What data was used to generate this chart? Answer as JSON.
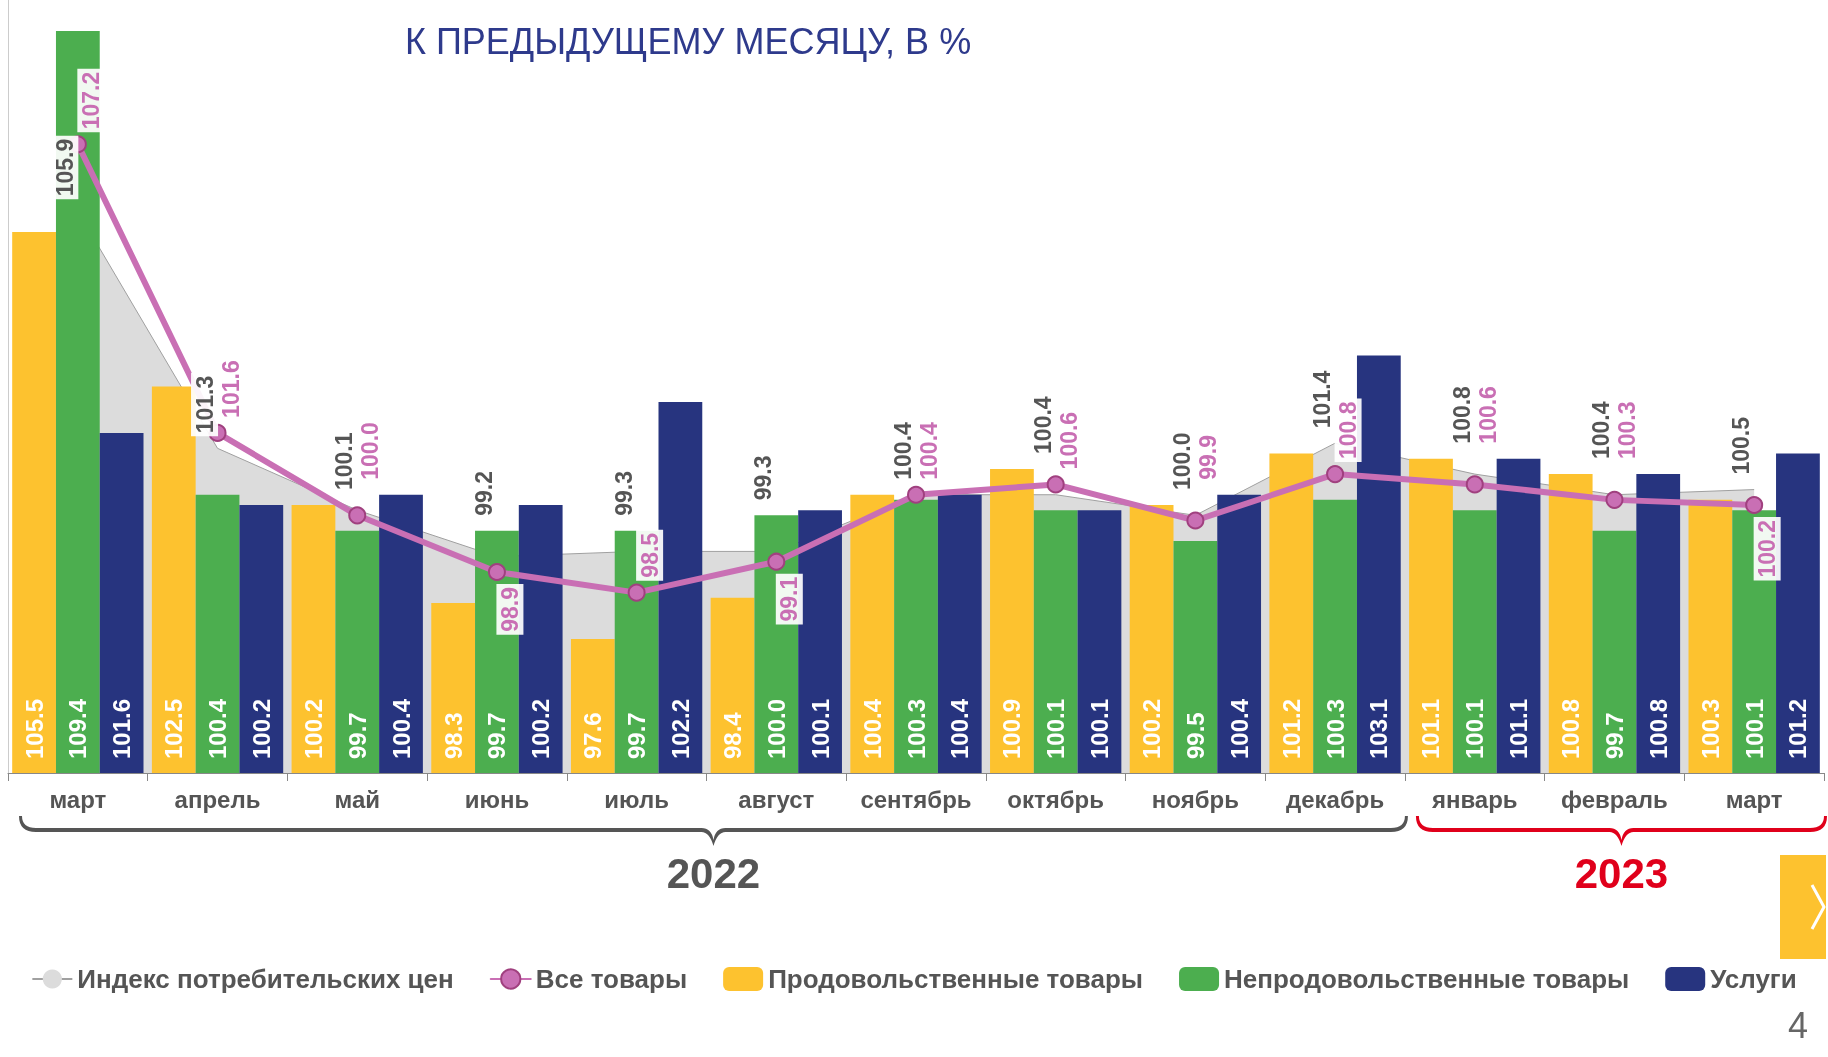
{
  "chart_data": {
    "type": "bar",
    "title": "К ПРЕДЫДУЩЕМУ МЕСЯЦУ, В %",
    "categories": [
      "март",
      "апрель",
      "май",
      "июнь",
      "июль",
      "август",
      "сентябрь",
      "октябрь",
      "ноябрь",
      "декабрь",
      "январь",
      "февраль",
      "март"
    ],
    "series": [
      {
        "type": "area",
        "name": "Индекс потребительских цен",
        "color": "#dcdcdc",
        "marker": "none",
        "values": [
          105.9,
          101.3,
          100.1,
          99.2,
          99.3,
          99.3,
          100.4,
          100.4,
          100.0,
          101.4,
          100.8,
          100.4,
          100.5
        ],
        "value_labels": [
          "105.9",
          "101.3",
          "100.1",
          "99.2",
          "99.3",
          "99.3",
          "100.4",
          "100.4",
          "100.0",
          "101.4",
          "100.8",
          "100.4",
          "100.5"
        ]
      },
      {
        "type": "line",
        "name": "Все товары",
        "color": "#c96fb4",
        "marker": "circle",
        "values": [
          107.2,
          101.6,
          100.0,
          98.9,
          98.5,
          99.1,
          100.4,
          100.6,
          99.9,
          100.8,
          100.6,
          100.3,
          100.2
        ],
        "value_labels": [
          "107.2",
          "101.6",
          "100.0",
          "98.9",
          "98.5",
          "99.1",
          "100.4",
          "100.6",
          "99.9",
          "100.8",
          "100.6",
          "100.3",
          "100.2"
        ]
      },
      {
        "name": "Продовольственные товары",
        "color": "#fdc22f",
        "values": [
          105.5,
          102.5,
          100.2,
          98.3,
          97.6,
          98.4,
          100.4,
          100.9,
          100.2,
          101.2,
          101.1,
          100.8,
          100.3
        ],
        "value_labels": [
          "105.5",
          "102.5",
          "100.2",
          "98.3",
          "97.6",
          "98.4",
          "100.4",
          "100.9",
          "100.2",
          "101.2",
          "101.1",
          "100.8",
          "100.3"
        ]
      },
      {
        "name": "Непродовольственные товары",
        "color": "#4cae4f",
        "values": [
          109.4,
          100.4,
          99.7,
          99.7,
          99.7,
          100.0,
          100.3,
          100.1,
          99.5,
          100.3,
          100.1,
          99.7,
          100.1
        ],
        "value_labels": [
          "109.4",
          "100.4",
          "99.7",
          "99.7",
          "99.7",
          "100.0",
          "100.3",
          "100.1",
          "99.5",
          "100.3",
          "100.1",
          "99.7",
          "100.1"
        ]
      },
      {
        "name": "Услуги",
        "color": "#27347f",
        "values": [
          101.6,
          100.2,
          100.4,
          100.2,
          102.2,
          100.1,
          100.4,
          100.1,
          100.4,
          103.1,
          101.1,
          100.8,
          101.2
        ],
        "value_labels": [
          "101.6",
          "100.2",
          "100.4",
          "100.2",
          "102.2",
          "100.1",
          "100.4",
          "100.1",
          "100.4",
          "103.1",
          "101.1",
          "100.8",
          "101.2"
        ]
      }
    ],
    "ylim": [
      95,
      110
    ],
    "tick_labels": "x",
    "legend": "bottom",
    "grid": false,
    "annotations": [
      "2022",
      "2023",
      "4"
    ]
  }
}
